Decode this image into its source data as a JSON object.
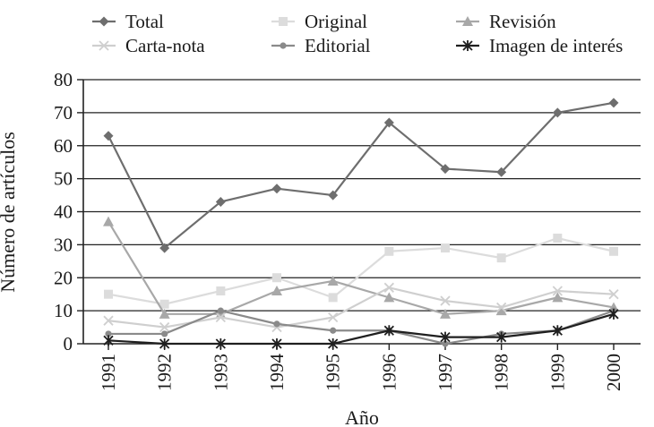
{
  "chart_data": {
    "type": "line",
    "title": "",
    "xlabel": "Año",
    "ylabel": "Número de artículos",
    "ylim": [
      0,
      80
    ],
    "yticks": [
      0,
      10,
      20,
      30,
      40,
      50,
      60,
      70,
      80
    ],
    "grid": true,
    "legend_position": "top",
    "x": [
      "1991",
      "1992",
      "1993",
      "1994",
      "1995",
      "1996",
      "1997",
      "1998",
      "1999",
      "2000"
    ],
    "series": [
      {
        "name": "Total",
        "color": "#6e6e6e",
        "marker": "diamond",
        "values": [
          63,
          29,
          43,
          47,
          45,
          67,
          53,
          52,
          70,
          73
        ]
      },
      {
        "name": "Original",
        "color": "#dcdcdc",
        "marker": "square",
        "values": [
          15,
          12,
          16,
          20,
          14,
          28,
          29,
          26,
          32,
          28
        ]
      },
      {
        "name": "Revisión",
        "color": "#a8a8a8",
        "marker": "triangle",
        "values": [
          37,
          9,
          9,
          16,
          19,
          14,
          9,
          10,
          14,
          11
        ]
      },
      {
        "name": "Carta-nota",
        "color": "#cfcfcf",
        "marker": "x",
        "values": [
          7,
          5,
          8,
          5,
          8,
          17,
          13,
          11,
          16,
          15
        ]
      },
      {
        "name": "Editorial",
        "color": "#8a8a8a",
        "marker": "circle",
        "values": [
          3,
          3,
          10,
          6,
          4,
          4,
          0,
          3,
          4,
          10
        ]
      },
      {
        "name": "Imagen de interés",
        "color": "#1f1f1f",
        "marker": "star",
        "values": [
          1,
          0,
          0,
          0,
          0,
          4,
          2,
          2,
          4,
          9
        ]
      }
    ]
  }
}
